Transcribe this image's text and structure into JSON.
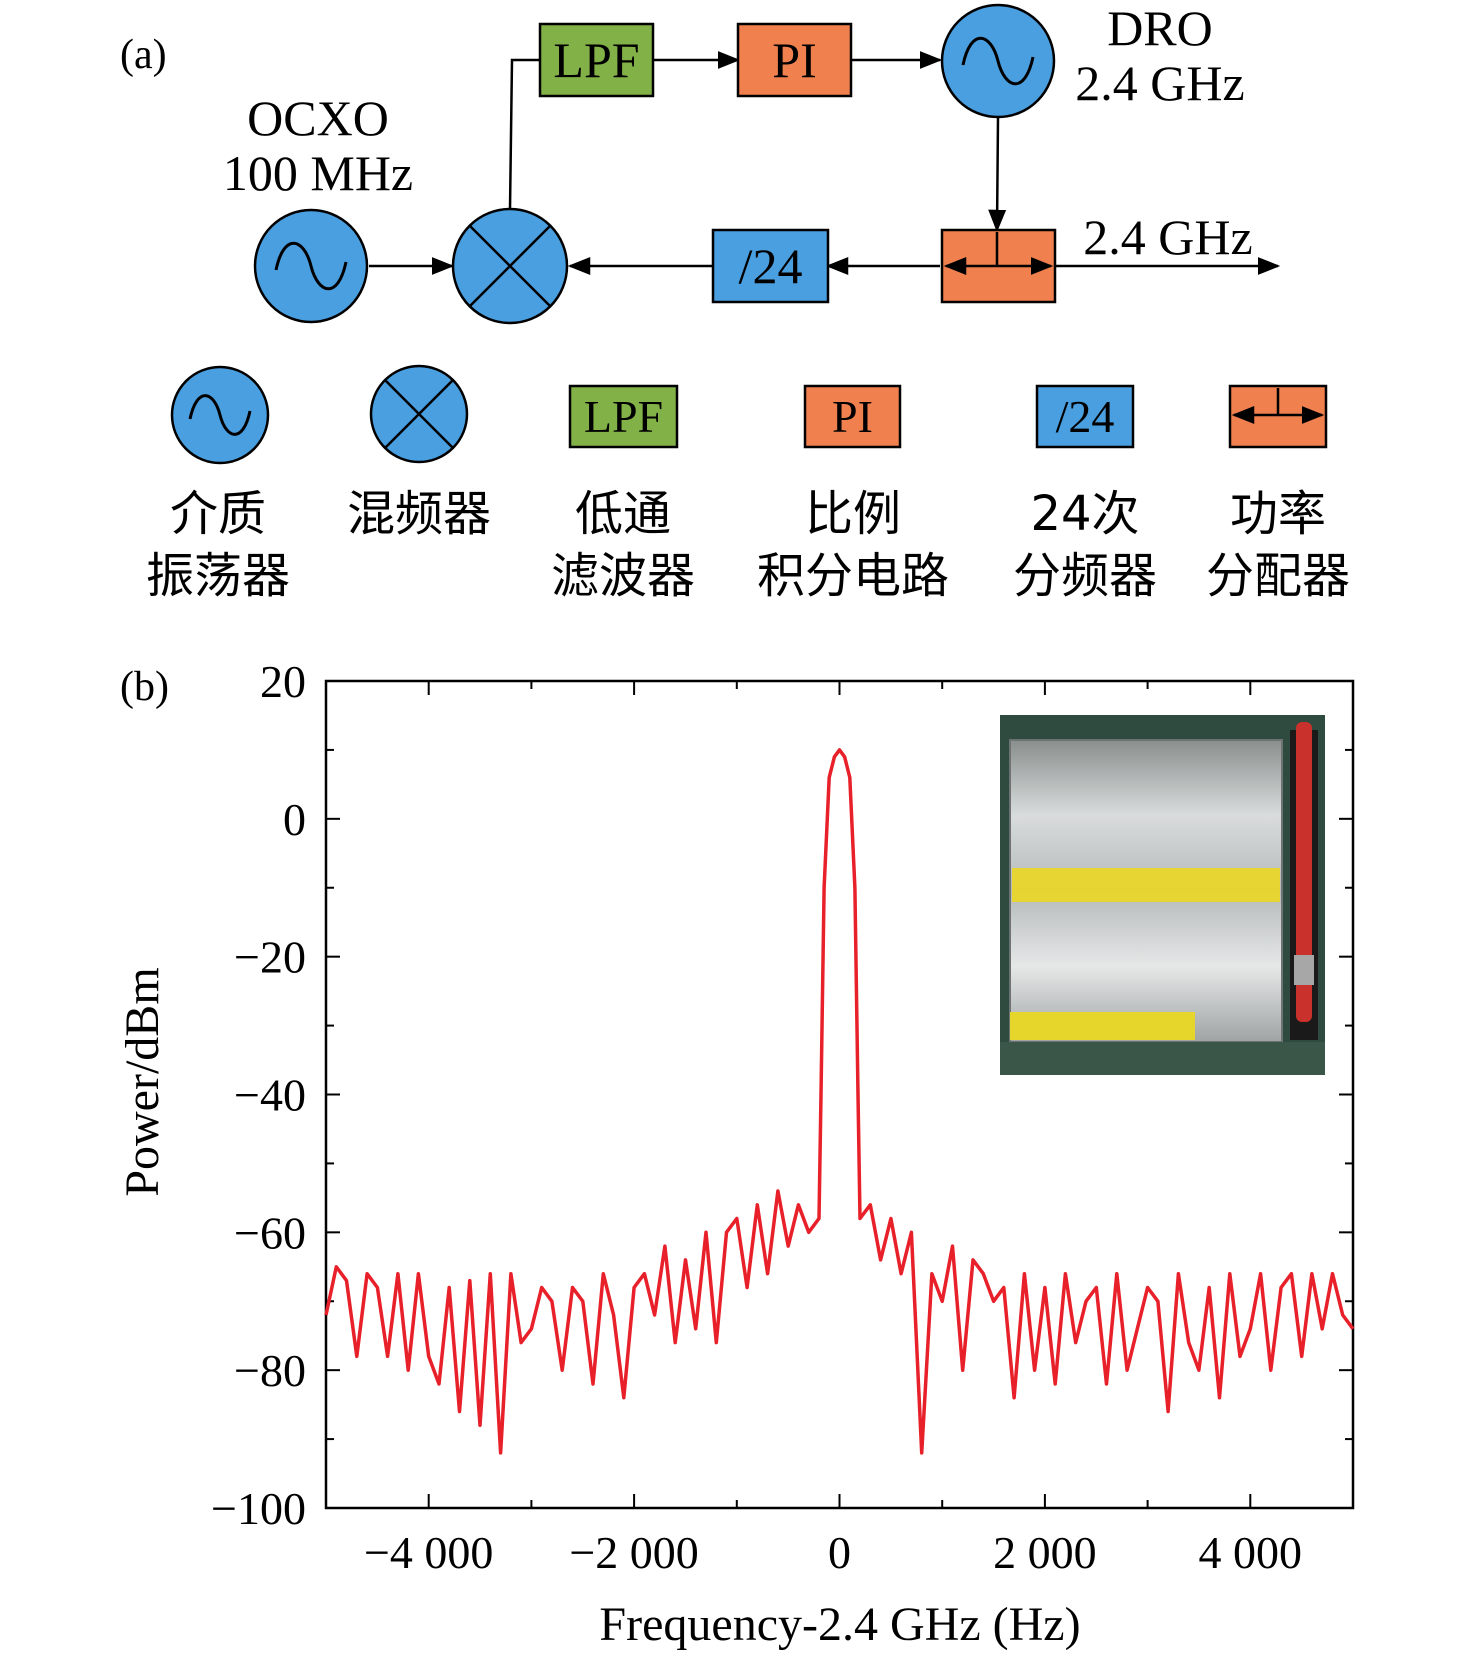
{
  "panel_a": {
    "label": "(a)",
    "ocxo": {
      "name": "OCXO",
      "freq": "100 MHz"
    },
    "dro": {
      "name": "DRO",
      "freq": "2.4 GHz"
    },
    "lpf_text": "LPF",
    "pi_text": "PI",
    "divider_text": "/24",
    "output_label": "2.4 GHz"
  },
  "legend": [
    {
      "symbol": "oscillator",
      "line1": "介质",
      "line2": "振荡器"
    },
    {
      "symbol": "mixer",
      "line1": "混频器",
      "line2": ""
    },
    {
      "symbol": "lpf",
      "text": "LPF",
      "line1": "低通",
      "line2": "滤波器"
    },
    {
      "symbol": "pi",
      "text": "PI",
      "line1": "比例",
      "line2": "积分电路"
    },
    {
      "symbol": "divider",
      "text": "/24",
      "line1": "24次",
      "line2": "分频器"
    },
    {
      "symbol": "splitter",
      "line1": "功率",
      "line2": "分配器"
    }
  ],
  "colors": {
    "blue": "#4a9fe0",
    "green": "#82b148",
    "orange": "#f0814f",
    "trace": "#e8202a"
  },
  "panel_b": {
    "label": "(b)",
    "inset": "photo of packaged DRO module (yellow labels on metal case)"
  },
  "chart_data": {
    "type": "line",
    "xlabel": "Frequency-2.4 GHz (Hz)",
    "ylabel": "Power/dBm",
    "xlim": [
      -5000,
      5000
    ],
    "ylim": [
      -100,
      20
    ],
    "xticks": [
      -4000,
      -2000,
      0,
      2000,
      4000
    ],
    "xtick_labels": [
      "−4 000",
      "−2 000",
      "0",
      "2 000",
      "4 000"
    ],
    "yticks": [
      20,
      0,
      -20,
      -40,
      -60,
      -80,
      -100
    ],
    "ytick_labels": [
      "20",
      "0",
      "−20",
      "−40",
      "−60",
      "−80",
      "−100"
    ],
    "grid": false,
    "series": [
      {
        "color": "#e8202a",
        "x": [
          -5000,
          -4900,
          -4800,
          -4700,
          -4600,
          -4500,
          -4400,
          -4300,
          -4200,
          -4100,
          -4000,
          -3900,
          -3800,
          -3700,
          -3600,
          -3500,
          -3400,
          -3300,
          -3200,
          -3100,
          -3000,
          -2900,
          -2800,
          -2700,
          -2600,
          -2500,
          -2400,
          -2300,
          -2200,
          -2100,
          -2000,
          -1900,
          -1800,
          -1700,
          -1600,
          -1500,
          -1400,
          -1300,
          -1200,
          -1100,
          -1000,
          -900,
          -800,
          -700,
          -600,
          -500,
          -400,
          -300,
          -200,
          -180,
          -150,
          -100,
          -50,
          0,
          50,
          100,
          150,
          180,
          200,
          300,
          400,
          500,
          600,
          700,
          800,
          900,
          1000,
          1100,
          1200,
          1300,
          1400,
          1500,
          1600,
          1700,
          1800,
          1900,
          2000,
          2100,
          2200,
          2300,
          2400,
          2500,
          2600,
          2700,
          2800,
          2900,
          3000,
          3100,
          3200,
          3300,
          3400,
          3500,
          3600,
          3700,
          3800,
          3900,
          4000,
          4100,
          4200,
          4300,
          4400,
          4500,
          4600,
          4700,
          4800,
          4900,
          5000
        ],
        "y": [
          -72,
          -65,
          -67,
          -78,
          -66,
          -68,
          -78,
          -66,
          -80,
          -66,
          -78,
          -82,
          -68,
          -86,
          -67,
          -88,
          -66,
          -92,
          -66,
          -76,
          -74,
          -68,
          -70,
          -80,
          -68,
          -70,
          -82,
          -66,
          -72,
          -84,
          -68,
          -66,
          -72,
          -62,
          -76,
          -64,
          -74,
          -60,
          -76,
          -60,
          -58,
          -68,
          -56,
          -66,
          -54,
          -62,
          -56,
          -60,
          -58,
          -40,
          -10,
          6,
          9,
          10,
          9,
          6,
          -10,
          -40,
          -58,
          -56,
          -64,
          -58,
          -66,
          -60,
          -92,
          -66,
          -70,
          -62,
          -80,
          -64,
          -66,
          -70,
          -68,
          -84,
          -66,
          -80,
          -68,
          -82,
          -66,
          -76,
          -70,
          -68,
          -82,
          -66,
          -80,
          -74,
          -68,
          -70,
          -86,
          -66,
          -76,
          -80,
          -68,
          -84,
          -66,
          -78,
          -74,
          -66,
          -80,
          -68,
          -66,
          -78,
          -66,
          -74,
          -66,
          -72,
          -74
        ]
      }
    ]
  }
}
